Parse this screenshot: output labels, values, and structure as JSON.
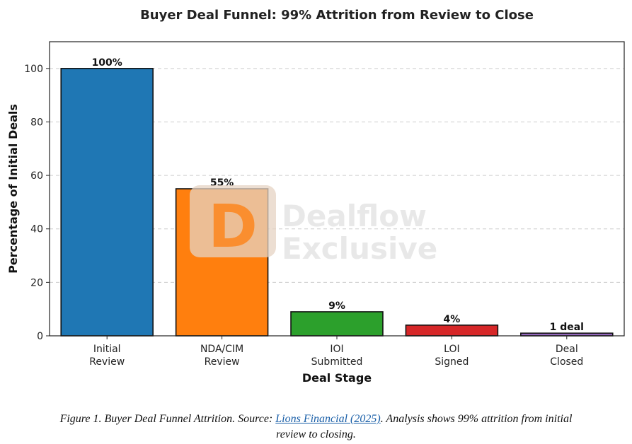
{
  "chart_data": {
    "type": "bar",
    "title": "Buyer Deal Funnel: 99% Attrition from Review to Close",
    "xlabel": "Deal Stage",
    "ylabel": "Percentage of Initial Deals",
    "ylim": [
      0,
      110
    ],
    "yticks": [
      0,
      20,
      40,
      60,
      80,
      100
    ],
    "grid": true,
    "categories": [
      [
        "Initial",
        "Review"
      ],
      [
        "NDA/CIM",
        "Review"
      ],
      [
        "IOI",
        "Submitted"
      ],
      [
        "LOI",
        "Signed"
      ],
      [
        "Deal",
        "Closed"
      ]
    ],
    "values": [
      100,
      55,
      9,
      4,
      1
    ],
    "data_labels": [
      "100%",
      "55%",
      "9%",
      "4%",
      "1 deal"
    ],
    "colors": [
      "#1f77b4",
      "#ff7f0e",
      "#2ca02c",
      "#d62728",
      "#9467bd"
    ]
  },
  "watermark": {
    "logo_letter": "D",
    "line1": "Dealflow",
    "line2": "Exclusive"
  },
  "caption": {
    "prefix": "Figure 1. Buyer Deal Funnel Attrition. Source: ",
    "link_text": "Lions Financial (2025)",
    "suffix_line1": ". Analysis shows 99% attrition from initial",
    "line2": "review to closing."
  }
}
